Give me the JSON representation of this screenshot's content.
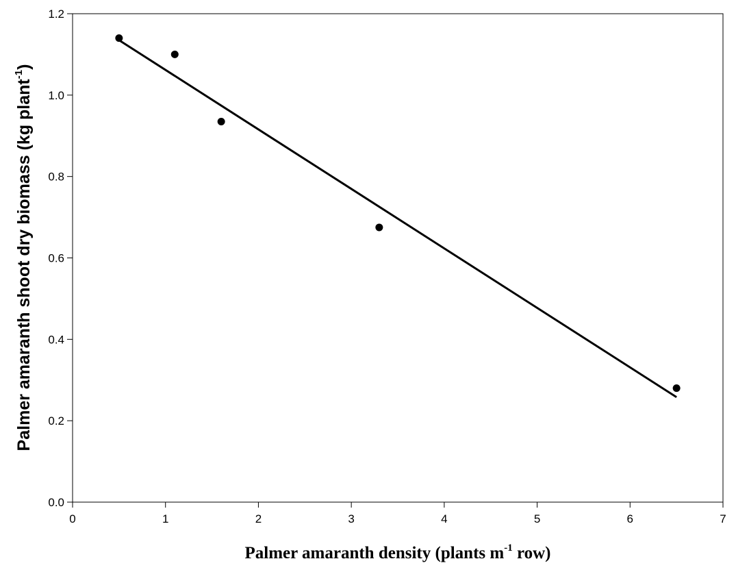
{
  "chart_data": {
    "type": "scatter",
    "title": "",
    "xlabel": {
      "before": "Palmer amaranth density (plants m",
      "sup": "-1",
      "after": " row)"
    },
    "ylabel": {
      "before": "Palmer amaranth shoot dry biomass (kg plant",
      "sup": "-1",
      "after": ")"
    },
    "xlim": [
      0,
      7
    ],
    "ylim": [
      0,
      1.2
    ],
    "x_ticks": [
      "0",
      "1",
      "2",
      "3",
      "4",
      "5",
      "6",
      "7"
    ],
    "y_ticks": [
      "0.0",
      "0.2",
      "0.4",
      "0.6",
      "0.8",
      "1.0",
      "1.2"
    ],
    "grid": false,
    "legend": "none",
    "points": [
      {
        "x": 0.5,
        "y": 1.14
      },
      {
        "x": 1.1,
        "y": 1.1
      },
      {
        "x": 1.6,
        "y": 0.935
      },
      {
        "x": 3.3,
        "y": 0.675
      },
      {
        "x": 6.5,
        "y": 0.28
      }
    ],
    "fit_line": {
      "x0": 0.5,
      "y0": 1.135,
      "x1": 6.5,
      "y1": 0.258
    },
    "colors": {
      "marker": "#000000",
      "line": "#000000",
      "axis": "#000000"
    }
  }
}
